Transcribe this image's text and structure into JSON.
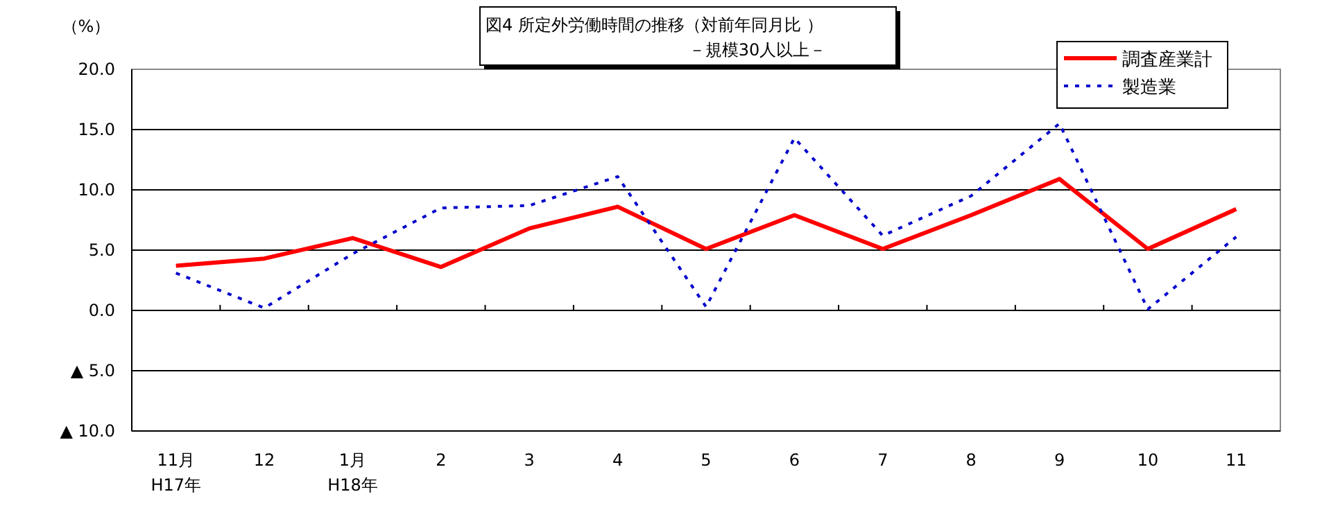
{
  "chart_data": {
    "type": "line",
    "title": "図4  所定外労働時間の推移（対前年同月比 ）",
    "subtitle": "－規模30人以上－",
    "ylabel": "（%）",
    "categories": [
      "11月\nH17年",
      "12",
      "1月\nH18年",
      "2",
      "3",
      "4",
      "5",
      "6",
      "7",
      "8",
      "9",
      "10",
      "11"
    ],
    "series": [
      {
        "name": "調査産業計",
        "color": "#ff0000",
        "line_style": "solid",
        "values": [
          3.7,
          4.3,
          6.0,
          3.6,
          6.8,
          8.6,
          5.1,
          7.9,
          5.1,
          7.9,
          10.9,
          5.1,
          8.4
        ]
      },
      {
        "name": "製造業",
        "color": "#0000cc",
        "line_style": "dotted",
        "values": [
          3.1,
          0.2,
          4.7,
          8.5,
          8.7,
          11.1,
          0.3,
          14.3,
          6.2,
          9.5,
          15.5,
          0.1,
          6.1
        ]
      }
    ],
    "ylim": [
      -10,
      20
    ],
    "yticks": [
      {
        "value": -10,
        "label": "▲ 10.0"
      },
      {
        "value": -5,
        "label": "▲ 5.0"
      },
      {
        "value": 0,
        "label": "0.0"
      },
      {
        "value": 5,
        "label": "5.0"
      },
      {
        "value": 10,
        "label": "10.0"
      },
      {
        "value": 15,
        "label": "15.0"
      },
      {
        "value": 20,
        "label": "20.0"
      }
    ],
    "grid": "y",
    "legend": "top right",
    "marker": "none"
  }
}
